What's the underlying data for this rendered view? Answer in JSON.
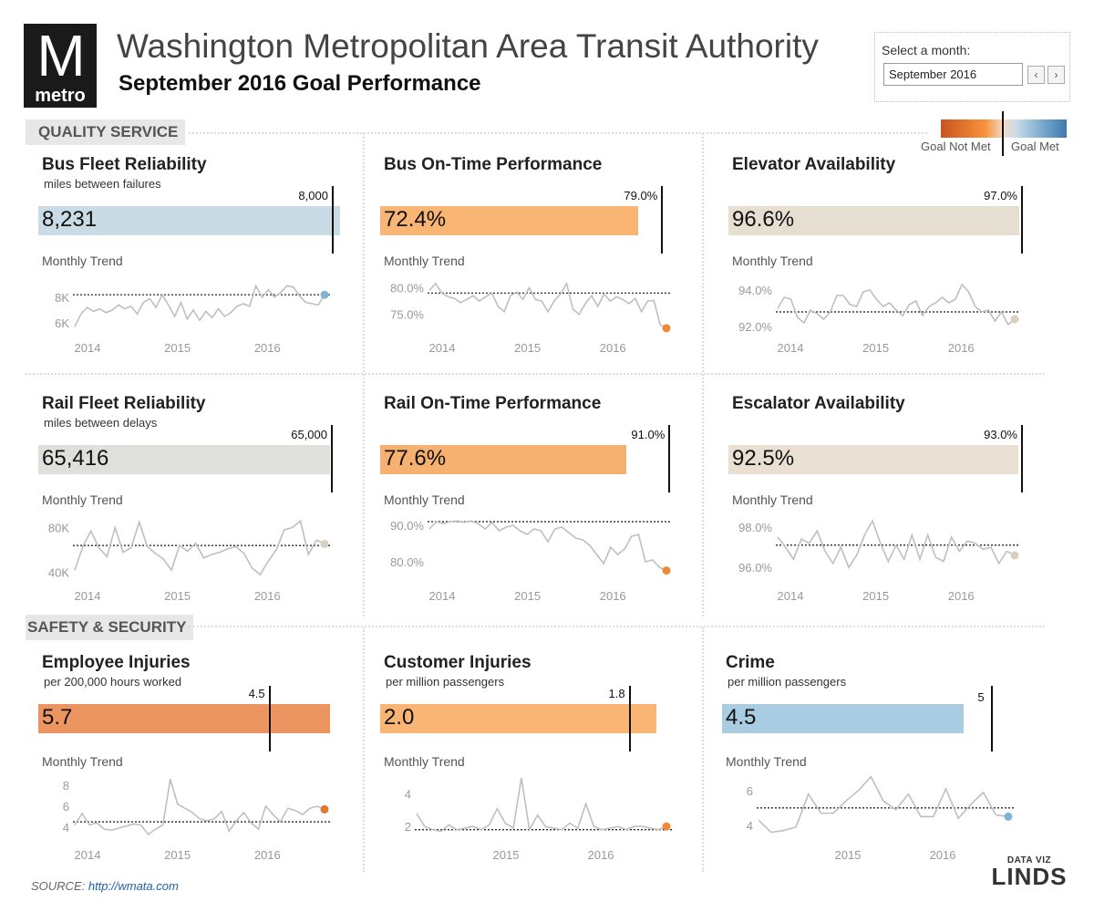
{
  "header": {
    "logo_letter": "M",
    "logo_word": "metro",
    "title": "Washington Metropolitan Area Transit Authority",
    "subtitle": "September 2016 Goal Performance"
  },
  "month_picker": {
    "label": "Select a month:",
    "value": "September 2016",
    "prev": "‹",
    "next": "›"
  },
  "legend": {
    "not_met": "Goal Not Met",
    "met": "Goal Met"
  },
  "sections": {
    "quality": "QUALITY SERVICE",
    "safety": "SAFETY & SECURITY"
  },
  "trend_label": "Monthly Trend",
  "footer": {
    "source_label": "SOURCE: ",
    "source_link": "http://wmata.com",
    "brand_top": "DATA VIZ",
    "brand_bottom": "LINDS"
  },
  "colors": {
    "orange_dark": "#ec9560",
    "orange": "#f8b574",
    "orange_mid": "#f6b06f",
    "blue_light": "#c9dce6",
    "gray": "#dfe0dc",
    "beige": "#e6ded1",
    "beige2": "#e9e0d3",
    "blue": "#a8cce2",
    "line": "#bfbfbf",
    "dot_orange": "#f0883a",
    "dot_blue": "#7fb3d8",
    "dot_beige": "#d9cfc0",
    "dot_dark": "#e07830"
  },
  "chart_data": [
    {
      "type": "bar",
      "id": "bus_fleet",
      "title": "Bus Fleet Reliability",
      "subtitle": "miles between failures",
      "value": 8231,
      "value_label": "8,231",
      "goal": 8000,
      "goal_label": "8,000",
      "max": 8300,
      "bar_color": "#c9dce6",
      "trend": {
        "type": "line",
        "ylim": [
          5000,
          10000
        ],
        "yticks": [
          6000,
          8000
        ],
        "ytick_labels": [
          "6K",
          "8K"
        ],
        "xticks": [
          "2014",
          "2015",
          "2016"
        ],
        "goal": 8200,
        "dot_color": "#7fb3d8",
        "values": [
          5700,
          6700,
          7200,
          6900,
          7100,
          6800,
          7000,
          7400,
          7100,
          7300,
          6700,
          7600,
          7900,
          7200,
          8200,
          7400,
          6500,
          7600,
          6300,
          7000,
          6200,
          6900,
          6400,
          7100,
          6500,
          6800,
          7300,
          7500,
          7300,
          8900,
          8000,
          8600,
          8000,
          8400,
          8900,
          8800,
          8100,
          7600,
          7500,
          7400,
          8200
        ]
      }
    },
    {
      "type": "bar",
      "id": "bus_otp",
      "title": "Bus On-Time Performance",
      "subtitle": "",
      "value": 72.4,
      "value_label": "72.4%",
      "goal": 79.0,
      "goal_label": "79.0%",
      "max": 82.0,
      "bar_color": "#f8b574",
      "trend": {
        "type": "line",
        "ylim": [
          71,
          83
        ],
        "yticks": [
          75,
          80
        ],
        "ytick_labels": [
          "75.0%",
          "80.0%"
        ],
        "xticks": [
          "2014",
          "2015",
          "2016"
        ],
        "goal": 79.0,
        "dot_color": "#f0883a",
        "values": [
          79.5,
          80.8,
          79.0,
          78.3,
          78.0,
          77.2,
          77.8,
          78.5,
          77.5,
          78.3,
          79.0,
          76.5,
          75.5,
          78.5,
          79.2,
          77.8,
          80.0,
          77.8,
          77.5,
          75.5,
          77.5,
          78.8,
          80.8,
          76.0,
          75.0,
          77.0,
          78.5,
          76.5,
          78.8,
          77.5,
          78.3,
          77.8,
          77.0,
          78.0,
          75.5,
          77.5,
          77.6,
          73.0,
          72.4
        ]
      }
    },
    {
      "type": "bar",
      "id": "elevator",
      "title": "Elevator Availability",
      "subtitle": "",
      "value": 96.6,
      "value_label": "96.6%",
      "goal": 97.0,
      "goal_label": "97.0%",
      "max": 97.0,
      "bar_color": "#e6ded1",
      "trend": {
        "type": "line",
        "ylim": [
          91.5,
          95
        ],
        "yticks": [
          92,
          94
        ],
        "ytick_labels": [
          "92.0%",
          "94.0%"
        ],
        "xticks": [
          "2014",
          "2015",
          "2016"
        ],
        "goal": 92.8,
        "dot_color": "#d9cfc0",
        "values": [
          93.0,
          93.6,
          93.5,
          92.5,
          92.2,
          92.9,
          92.7,
          92.4,
          92.8,
          93.7,
          93.7,
          93.2,
          93.1,
          93.9,
          94.0,
          93.5,
          93.1,
          93.3,
          92.9,
          92.6,
          93.2,
          93.4,
          92.6,
          93.1,
          93.3,
          93.6,
          93.3,
          93.5,
          94.3,
          93.9,
          93.1,
          92.8,
          92.9,
          92.3,
          92.8,
          92.1,
          92.4
        ]
      }
    },
    {
      "type": "bar",
      "id": "rail_fleet",
      "title": "Rail Fleet Reliability",
      "subtitle": "miles between delays",
      "value": 65416,
      "value_label": "65,416",
      "goal": 65000,
      "goal_label": "65,000",
      "max": 65000,
      "bar_color": "#dfe0dc",
      "trend": {
        "type": "line",
        "ylim": [
          30000,
          95000
        ],
        "yticks": [
          40000,
          80000
        ],
        "ytick_labels": [
          "40K",
          "80K"
        ],
        "xticks": [
          "2014",
          "2015",
          "2016"
        ],
        "goal": 64000,
        "dot_color": "#d9cfc0",
        "values": [
          42000,
          63000,
          77000,
          62000,
          54000,
          80000,
          58000,
          62000,
          85000,
          63000,
          57000,
          52000,
          42000,
          64000,
          59000,
          66000,
          53000,
          56000,
          58000,
          61000,
          63000,
          57000,
          44000,
          38000,
          50000,
          60000,
          78000,
          80000,
          86000,
          56000,
          69000,
          65416
        ]
      }
    },
    {
      "type": "bar",
      "id": "rail_otp",
      "title": "Rail On-Time Performance",
      "subtitle": "",
      "value": 77.6,
      "value_label": "77.6%",
      "goal": 91.0,
      "goal_label": "91.0%",
      "max": 91.5,
      "bar_color": "#f6b06f",
      "trend": {
        "type": "line",
        "ylim": [
          74,
          94
        ],
        "yticks": [
          80,
          90
        ],
        "ytick_labels": [
          "80.0%",
          "90.0%"
        ],
        "xticks": [
          "2014",
          "2015",
          "2016"
        ],
        "goal": 91.0,
        "dot_color": "#f0883a",
        "values": [
          89.0,
          91.0,
          90.5,
          91.0,
          91.2,
          90.8,
          91.2,
          90.5,
          89.0,
          90.8,
          88.5,
          89.5,
          90.0,
          88.5,
          87.5,
          89.0,
          88.5,
          85.5,
          89.0,
          89.5,
          88.0,
          86.5,
          86.0,
          84.5,
          82.0,
          79.5,
          84.0,
          82.0,
          83.5,
          87.0,
          87.5,
          80.0,
          80.5,
          78.5,
          77.6
        ]
      }
    },
    {
      "type": "bar",
      "id": "escalator",
      "title": "Escalator Availability",
      "subtitle": "",
      "value": 92.5,
      "value_label": "92.5%",
      "goal": 93.0,
      "goal_label": "93.0%",
      "max": 93.0,
      "bar_color": "#e9e0d3",
      "trend": {
        "type": "line",
        "ylim": [
          95.2,
          98.8
        ],
        "yticks": [
          96,
          98
        ],
        "ytick_labels": [
          "96.0%",
          "98.0%"
        ],
        "xticks": [
          "2014",
          "2015",
          "2016"
        ],
        "goal": 97.1,
        "dot_color": "#d9cfc0",
        "values": [
          97.5,
          97.0,
          96.4,
          97.4,
          97.2,
          97.8,
          96.8,
          96.2,
          97.0,
          96.0,
          96.6,
          97.6,
          98.3,
          97.2,
          96.3,
          97.1,
          96.4,
          97.6,
          96.4,
          97.6,
          96.5,
          96.3,
          97.5,
          96.8,
          97.3,
          97.2,
          96.9,
          97.0,
          96.2,
          96.8,
          96.6
        ]
      }
    },
    {
      "type": "bar",
      "id": "employee_injuries",
      "title": "Employee Injuries",
      "subtitle": "per 200,000 hours worked",
      "value": 5.7,
      "value_label": "5.7",
      "goal": 4.5,
      "goal_label": "4.5",
      "max": 5.7,
      "bar_color": "#ec9560",
      "trend": {
        "type": "line",
        "ylim": [
          2.5,
          9.5
        ],
        "yticks": [
          4,
          6,
          8
        ],
        "ytick_labels": [
          "4",
          "6",
          "8"
        ],
        "xticks": [
          "2014",
          "2015",
          "2016"
        ],
        "goal": 4.5,
        "dot_color": "#e07830",
        "values": [
          4.2,
          5.3,
          4.2,
          4.4,
          3.8,
          3.7,
          3.9,
          4.1,
          4.3,
          4.2,
          3.3,
          3.8,
          4.2,
          8.6,
          6.2,
          5.8,
          5.4,
          4.8,
          4.6,
          4.8,
          5.5,
          3.6,
          4.6,
          5.4,
          4.4,
          3.8,
          6.0,
          5.2,
          4.5,
          5.8,
          5.6,
          5.2,
          5.8,
          6.0,
          5.7
        ]
      }
    },
    {
      "type": "bar",
      "id": "customer_injuries",
      "title": "Customer Injuries",
      "subtitle": "per million passengers",
      "value": 2.0,
      "value_label": "2.0",
      "goal": 1.8,
      "goal_label": "1.8",
      "max": 2.1,
      "bar_color": "#f8b574",
      "trend": {
        "type": "line",
        "ylim": [
          1.0,
          5.5
        ],
        "yticks": [
          2,
          4
        ],
        "ytick_labels": [
          "2",
          "4"
        ],
        "xticks": [
          "2015",
          "2016"
        ],
        "goal": 1.8,
        "dot_color": "#f0883a",
        "values": [
          2.8,
          2.0,
          1.8,
          1.7,
          2.1,
          1.8,
          1.9,
          2.0,
          1.8,
          2.1,
          3.1,
          2.2,
          1.9,
          5.0,
          1.8,
          2.7,
          2.0,
          1.9,
          1.8,
          2.2,
          1.9,
          3.4,
          2.0,
          1.8,
          1.9,
          2.0,
          1.8,
          2.0,
          2.0,
          1.9,
          1.8,
          2.0
        ]
      }
    },
    {
      "type": "bar",
      "id": "crime",
      "title": "Crime",
      "subtitle": "per million passengers",
      "value": 4.5,
      "value_label": "4.5",
      "goal": 5,
      "goal_label": "5",
      "max": 5.6,
      "bar_color": "#a8cce2",
      "trend": {
        "type": "line",
        "ylim": [
          3.0,
          7.2
        ],
        "yticks": [
          4,
          6
        ],
        "ytick_labels": [
          "4",
          "6"
        ],
        "xticks": [
          "2015",
          "2016"
        ],
        "goal": 5.0,
        "dot_color": "#7fb3d8",
        "values": [
          4.3,
          3.6,
          3.7,
          3.9,
          5.8,
          4.7,
          4.7,
          5.4,
          6.0,
          6.8,
          5.4,
          4.9,
          5.8,
          4.5,
          4.5,
          6.1,
          4.4,
          5.2,
          5.9,
          4.6,
          4.5
        ]
      }
    }
  ]
}
